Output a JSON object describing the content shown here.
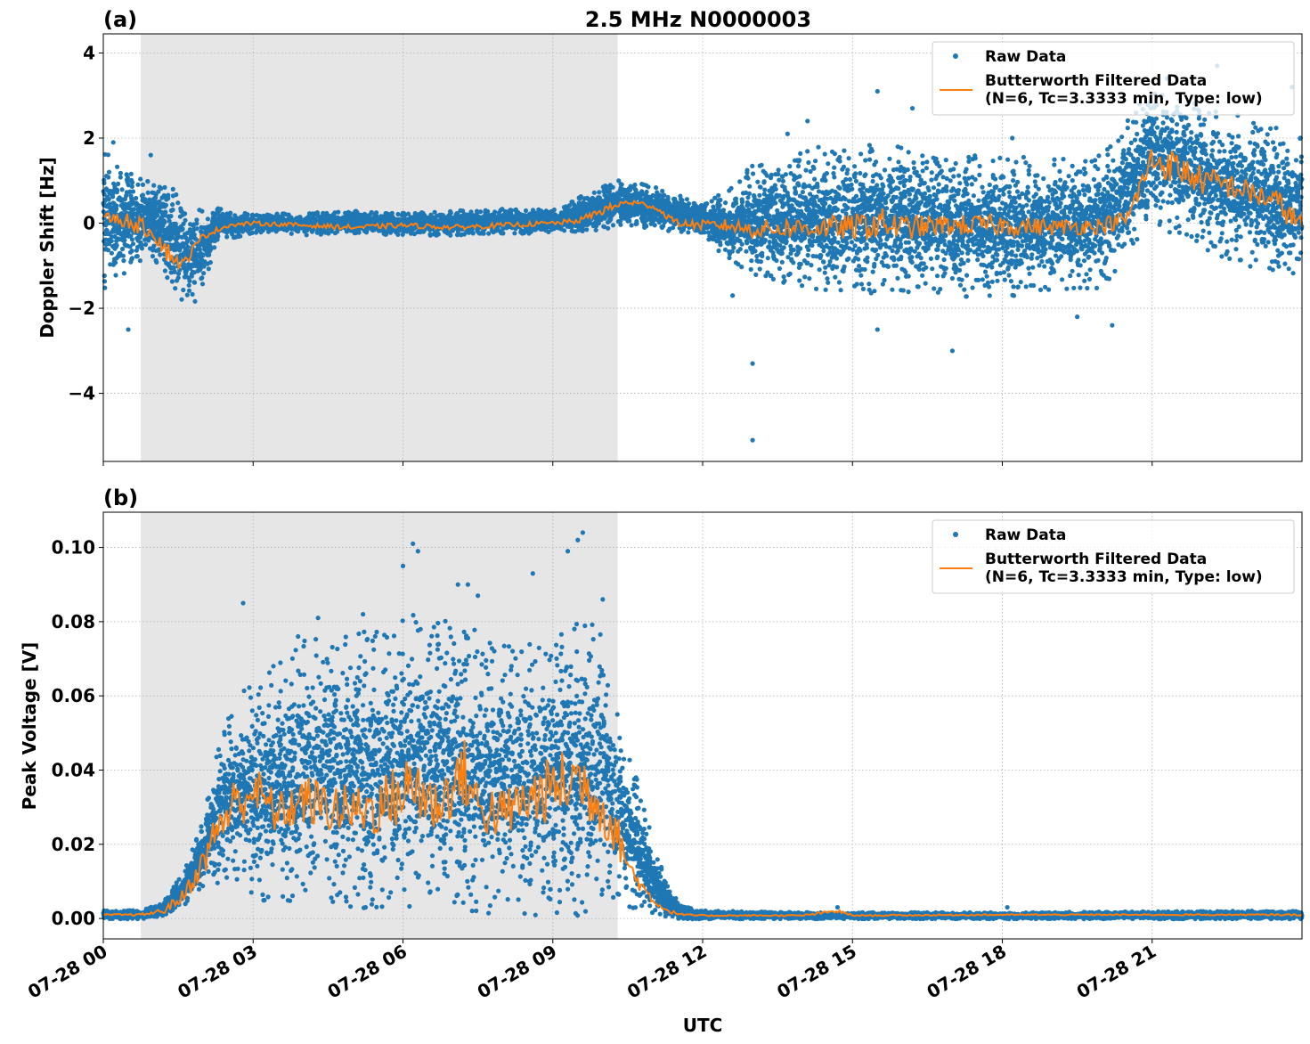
{
  "figure": {
    "title": "2.5 MHz N0000003",
    "xlabel": "UTC"
  },
  "colors": {
    "raw": "#1f77b4",
    "filtered": "#ff7f0e",
    "shade": "#e6e6e6",
    "grid": "#b0b0b0"
  },
  "chart_data": [
    {
      "type": "scatter",
      "panel_label": "(a)",
      "title": "2.5 MHz N0000003",
      "xlabel": "UTC",
      "ylabel": "Doppler Shift [Hz]",
      "xlim_hours": [
        0,
        24
      ],
      "ylim": [
        -5.6,
        4.45
      ],
      "x_ticks": [
        "07-28 00",
        "07-28 03",
        "07-28 06",
        "07-28 09",
        "07-28 12",
        "07-28 15",
        "07-28 18",
        "07-28 21"
      ],
      "x_tick_hours": [
        0,
        3,
        6,
        9,
        12,
        15,
        18,
        21
      ],
      "y_ticks": [
        4,
        2,
        0,
        -2,
        -4
      ],
      "y_tick_labels": [
        "4",
        "2",
        "0",
        "−2",
        "−4"
      ],
      "grid": true,
      "legend": "upper-right",
      "night_shading_hours": [
        0.75,
        10.3
      ],
      "series": [
        {
          "name": "Raw Data",
          "style": "points",
          "band_x": [
            0,
            0.3,
            0.6,
            1.0,
            1.5,
            1.8,
            2.3,
            3,
            4,
            5,
            6,
            7,
            8,
            9,
            10,
            10.3,
            11,
            12,
            12.5,
            13,
            14,
            15,
            16,
            17,
            18,
            19,
            20,
            21,
            21.5,
            22,
            23,
            24
          ],
          "band_lo": [
            -1.4,
            -1.2,
            -0.8,
            -0.7,
            -1.6,
            -2.0,
            -0.4,
            -0.2,
            -0.25,
            -0.2,
            -0.25,
            -0.25,
            -0.2,
            -0.2,
            -0.1,
            0.0,
            -0.1,
            -0.2,
            -0.8,
            -1.1,
            -1.3,
            -1.4,
            -1.4,
            -1.5,
            -1.5,
            -1.4,
            -1.3,
            0.2,
            -0.1,
            -0.4,
            -0.8,
            -1.0
          ],
          "band_hi": [
            1.5,
            1.3,
            1.0,
            0.9,
            0.6,
            0.2,
            0.3,
            0.2,
            0.2,
            0.25,
            0.2,
            0.25,
            0.3,
            0.3,
            0.8,
            1.0,
            0.8,
            0.4,
            0.7,
            1.2,
            1.5,
            1.7,
            1.6,
            1.4,
            1.4,
            1.3,
            1.4,
            3.0,
            2.8,
            2.6,
            2.2,
            1.8
          ],
          "outliers": [
            [
              0.5,
              -2.5
            ],
            [
              0.2,
              1.9
            ],
            [
              0.95,
              1.6
            ],
            [
              13.0,
              -3.3
            ],
            [
              13.0,
              -5.1
            ],
            [
              15.5,
              3.1
            ],
            [
              16.2,
              2.7
            ],
            [
              17.0,
              -3.0
            ],
            [
              14.1,
              2.4
            ],
            [
              22.3,
              3.7
            ],
            [
              21.3,
              3.4
            ],
            [
              23.8,
              3.2
            ],
            [
              20.2,
              -2.4
            ],
            [
              12.6,
              -1.7
            ],
            [
              15.5,
              -2.5
            ],
            [
              13.7,
              2.1
            ],
            [
              18.2,
              2.0
            ],
            [
              19.5,
              -2.2
            ]
          ]
        },
        {
          "name": "Butterworth Filtered Data\n(N=6, Tc=3.3333 min, Type: low)",
          "style": "line",
          "x": [
            0,
            0.5,
            1.0,
            1.3,
            1.6,
            1.8,
            2.0,
            2.5,
            3,
            4,
            5,
            6,
            7,
            8,
            9,
            9.5,
            10,
            10.5,
            11,
            11.5,
            12,
            12.5,
            13,
            14,
            15,
            15.5,
            16,
            17,
            18,
            19,
            20,
            20.5,
            21,
            21.5,
            22,
            22.5,
            23,
            23.5,
            24
          ],
          "y": [
            0.15,
            0.05,
            -0.2,
            -0.7,
            -1.0,
            -0.6,
            -0.3,
            -0.05,
            0.0,
            -0.05,
            -0.1,
            -0.05,
            -0.1,
            -0.05,
            0.0,
            0.05,
            0.3,
            0.5,
            0.4,
            0.0,
            -0.05,
            -0.05,
            -0.15,
            -0.1,
            -0.1,
            0.0,
            -0.1,
            -0.05,
            -0.05,
            -0.1,
            -0.05,
            0.1,
            1.5,
            1.3,
            1.0,
            0.9,
            0.7,
            0.5,
            -0.1
          ],
          "jitter": [
            0.1,
            0.2,
            0.2,
            0.25,
            0.15,
            0.1,
            0.08,
            0.05,
            0.05,
            0.05,
            0.06,
            0.06,
            0.06,
            0.06,
            0.06,
            0.06,
            0.1,
            0.08,
            0.06,
            0.08,
            0.12,
            0.15,
            0.2,
            0.25,
            0.3,
            0.4,
            0.3,
            0.25,
            0.25,
            0.2,
            0.2,
            0.2,
            0.4,
            0.4,
            0.35,
            0.3,
            0.3,
            0.3,
            0.3
          ]
        }
      ]
    },
    {
      "type": "scatter",
      "panel_label": "(b)",
      "xlabel": "UTC",
      "ylabel": "Peak Voltage [V]",
      "xlim_hours": [
        0,
        24
      ],
      "ylim": [
        -0.0055,
        0.1095
      ],
      "x_ticks": [
        "07-28 00",
        "07-28 03",
        "07-28 06",
        "07-28 09",
        "07-28 12",
        "07-28 15",
        "07-28 18",
        "07-28 21"
      ],
      "x_tick_hours": [
        0,
        3,
        6,
        9,
        12,
        15,
        18,
        21
      ],
      "y_ticks": [
        0.1,
        0.08,
        0.06,
        0.04,
        0.02,
        0.0
      ],
      "y_tick_labels": [
        "0.10",
        "0.08",
        "0.06",
        "0.04",
        "0.02",
        "0.00"
      ],
      "grid": true,
      "legend": "upper-right",
      "night_shading_hours": [
        0.75,
        10.3
      ],
      "series": [
        {
          "name": "Raw Data",
          "style": "points",
          "band_x": [
            0,
            0.75,
            1.2,
            1.6,
            2.0,
            2.3,
            2.6,
            3,
            3.5,
            4,
            5,
            6,
            6.5,
            7,
            8,
            9,
            9.5,
            10,
            10.3,
            10.6,
            11,
            11.3,
            11.6,
            12,
            14,
            18,
            24
          ],
          "band_lo": [
            0.0,
            0.0,
            0.001,
            0.004,
            0.01,
            0.012,
            0.014,
            0.01,
            0.008,
            0.01,
            0.008,
            0.006,
            0.008,
            0.008,
            0.006,
            0.006,
            0.006,
            0.008,
            0.008,
            0.005,
            0.002,
            0.001,
            0.0,
            0.0,
            0.0,
            0.0,
            0.0
          ],
          "band_hi": [
            0.002,
            0.002,
            0.004,
            0.012,
            0.025,
            0.045,
            0.055,
            0.06,
            0.065,
            0.07,
            0.072,
            0.075,
            0.078,
            0.075,
            0.07,
            0.07,
            0.075,
            0.075,
            0.055,
            0.04,
            0.02,
            0.008,
            0.003,
            0.002,
            0.0015,
            0.0015,
            0.002
          ],
          "outliers": [
            [
              2.8,
              0.085
            ],
            [
              4.3,
              0.081
            ],
            [
              5.2,
              0.082
            ],
            [
              6.2,
              0.101
            ],
            [
              6.0,
              0.095
            ],
            [
              6.3,
              0.099
            ],
            [
              7.1,
              0.09
            ],
            [
              7.5,
              0.087
            ],
            [
              8.6,
              0.093
            ],
            [
              9.3,
              0.099
            ],
            [
              9.6,
              0.104
            ],
            [
              9.5,
              0.102
            ],
            [
              10.0,
              0.086
            ],
            [
              3.9,
              0.076
            ],
            [
              7.3,
              0.09
            ],
            [
              14.7,
              0.003
            ],
            [
              18.1,
              0.003
            ]
          ]
        },
        {
          "name": "Butterworth Filtered Data\n(N=6, Tc=3.3333 min, Type: low)",
          "style": "line",
          "x": [
            0,
            0.75,
            1.2,
            1.6,
            2.0,
            2.3,
            2.6,
            3,
            3.5,
            4,
            4.5,
            5,
            5.5,
            6,
            6.3,
            6.6,
            7,
            7.2,
            7.5,
            8,
            8.5,
            9,
            9.5,
            10,
            10.3,
            10.6,
            11,
            11.3,
            11.6,
            12,
            14,
            14.7,
            15,
            18,
            24
          ],
          "y": [
            0.001,
            0.001,
            0.002,
            0.006,
            0.015,
            0.025,
            0.03,
            0.035,
            0.028,
            0.032,
            0.03,
            0.029,
            0.03,
            0.034,
            0.036,
            0.03,
            0.035,
            0.04,
            0.03,
            0.028,
            0.032,
            0.035,
            0.038,
            0.03,
            0.022,
            0.012,
            0.005,
            0.002,
            0.001,
            0.0008,
            0.0008,
            0.002,
            0.0008,
            0.001,
            0.001
          ],
          "jitter": [
            0.0002,
            0.0003,
            0.0008,
            0.002,
            0.004,
            0.006,
            0.008,
            0.007,
            0.006,
            0.007,
            0.007,
            0.007,
            0.008,
            0.009,
            0.012,
            0.008,
            0.008,
            0.01,
            0.008,
            0.007,
            0.008,
            0.009,
            0.01,
            0.008,
            0.006,
            0.003,
            0.001,
            0.0005,
            0.0003,
            0.0002,
            0.0002,
            0.0005,
            0.0002,
            0.0002,
            0.0002
          ]
        }
      ]
    }
  ]
}
